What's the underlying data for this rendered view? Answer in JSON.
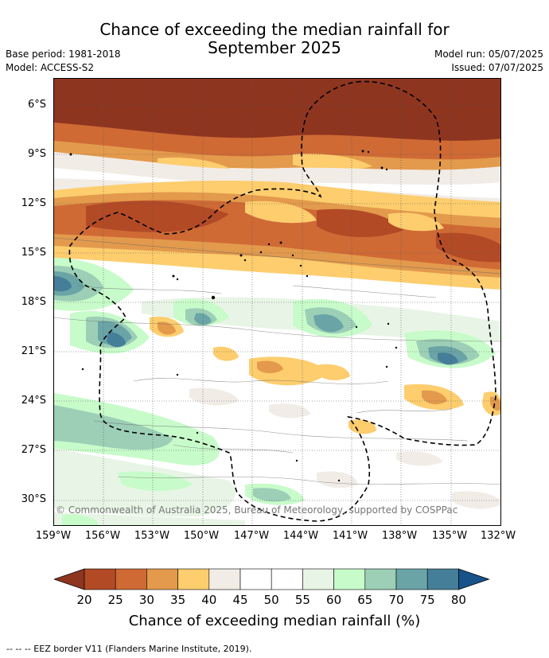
{
  "title_line1": "Chance of exceeding the median rainfall for",
  "title_line2": "September 2025",
  "base_period": "Base period: 1981-2018",
  "model": "Model: ACCESS-S2",
  "model_run": "Model run: 05/07/2025",
  "issued": "Issued: 07/07/2025",
  "copyright": "© Commonwealth of Australia 2025, Bureau of Meteorology, supported by COSPPac",
  "footnote": "--  --  -- EEZ border V11 (Flanders Marine Institute, 2019).",
  "lat_ticks": [
    "6°S",
    "9°S",
    "12°S",
    "15°S",
    "18°S",
    "21°S",
    "24°S",
    "27°S",
    "30°S"
  ],
  "lon_ticks": [
    "159°W",
    "156°W",
    "153°W",
    "150°W",
    "147°W",
    "144°W",
    "141°W",
    "138°W",
    "135°W",
    "132°W"
  ],
  "colorbar": {
    "title": "Chance of exceeding median rainfall (%)",
    "labels": [
      "20",
      "25",
      "30",
      "35",
      "40",
      "45",
      "50",
      "55",
      "60",
      "65",
      "70",
      "75",
      "80"
    ],
    "colors": [
      "#8e3520",
      "#b24a26",
      "#cf6a35",
      "#e39a4c",
      "#fdcd6e",
      "#f1ece6",
      "#ffffff",
      "#ffffff",
      "#e8f5e6",
      "#c8fbca",
      "#9ccfb6",
      "#6aa4a6",
      "#457e98",
      "#17528a"
    ]
  },
  "map_colors": {
    "dark_brown": "#8e3520",
    "brown": "#b24a26",
    "orange": "#cf6a35",
    "light_orange": "#e39a4c",
    "yellow": "#fdcd6e",
    "beige": "#f1ece6",
    "light_green": "#e8f5e6",
    "green": "#c8fbca",
    "teal": "#9ccfb6",
    "dark_teal": "#6aa4a6",
    "blue": "#457e98"
  }
}
